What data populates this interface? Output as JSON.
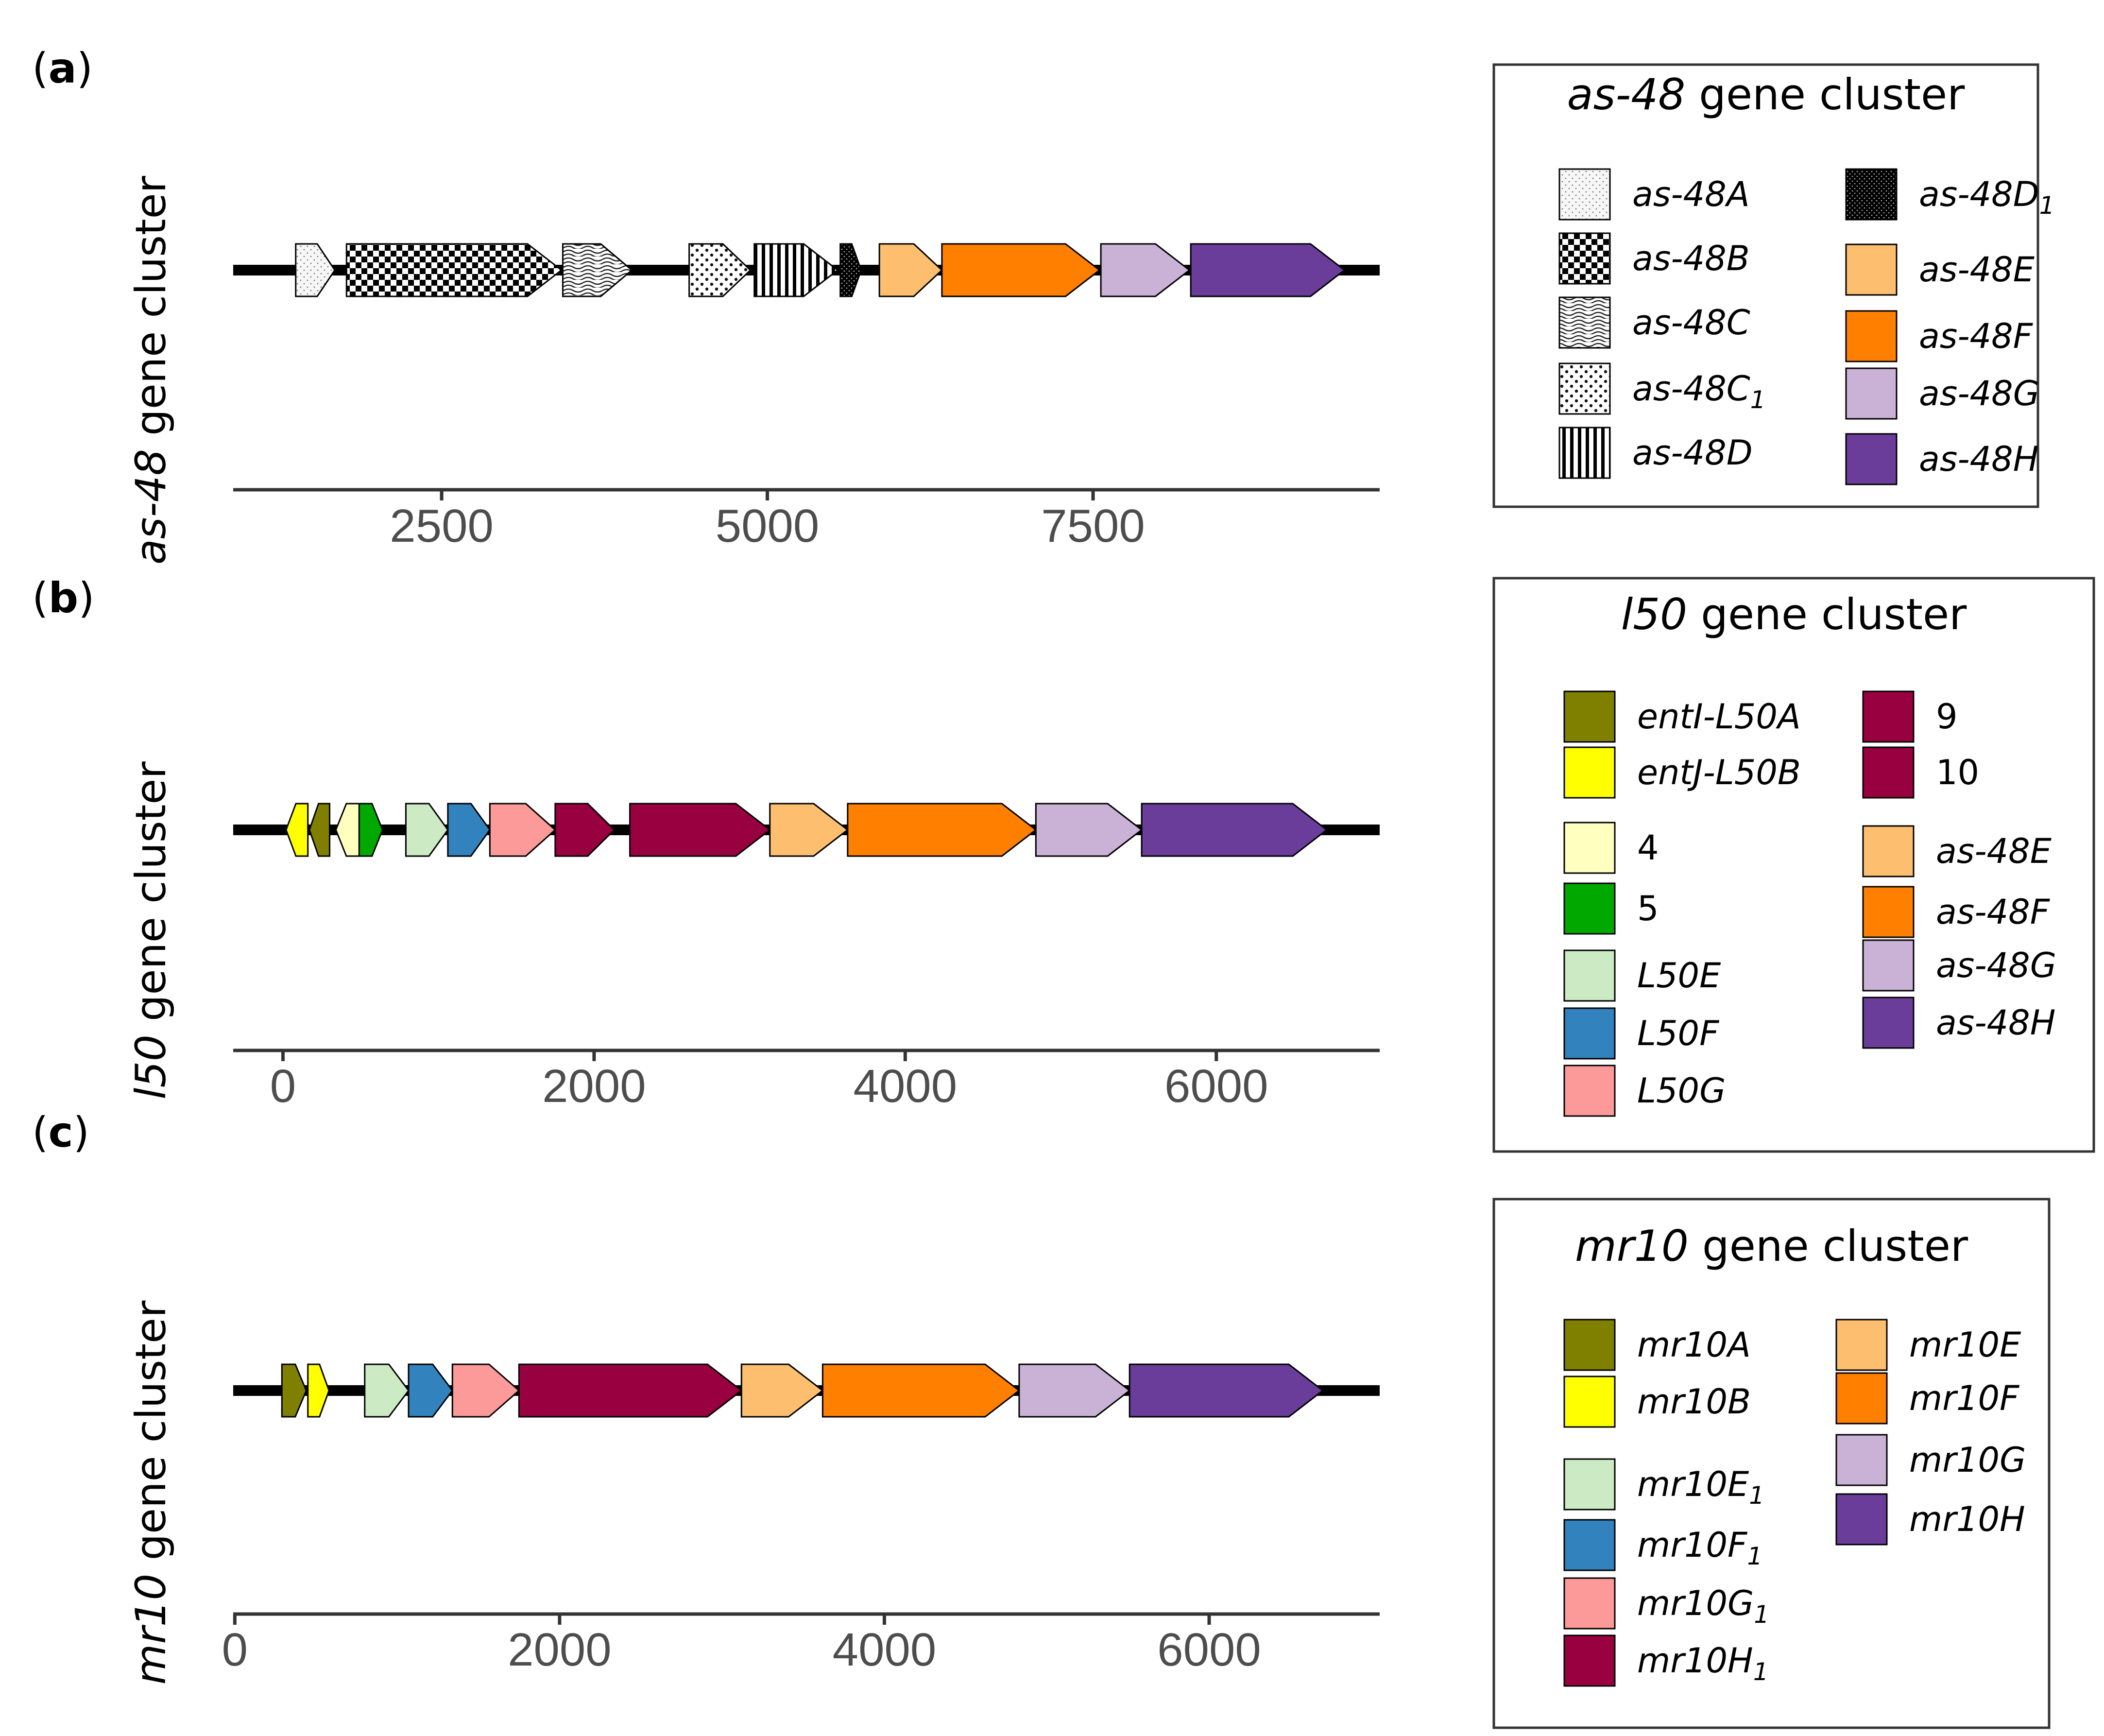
{
  "panels": [
    {
      "id": "a",
      "letter": "a",
      "ylabel": {
        "italic": "as-48",
        "rest": " gene cluster"
      },
      "axis": {
        "domain": [
          900,
          9700
        ],
        "ticks": [
          2500,
          5000,
          7500
        ]
      },
      "genes": [
        {
          "start": 1380,
          "end": 1680,
          "fill": "pattern:fine-dots"
        },
        {
          "start": 1770,
          "end": 3420,
          "fill": "pattern:checker"
        },
        {
          "start": 3430,
          "end": 3960,
          "fill": "pattern:waves"
        },
        {
          "start": 4400,
          "end": 4870,
          "fill": "pattern:coarse-dots"
        },
        {
          "start": 4900,
          "end": 5540,
          "fill": "pattern:vlines"
        },
        {
          "start": 5560,
          "end": 5720,
          "fill": "pattern:dense-dots"
        },
        {
          "start": 5860,
          "end": 6340,
          "fill": "#fdbf6f"
        },
        {
          "start": 6340,
          "end": 7550,
          "fill": "#ff7f00"
        },
        {
          "start": 7560,
          "end": 8240,
          "fill": "#cab2d6"
        },
        {
          "start": 8250,
          "end": 9430,
          "fill": "#6a3d9a"
        }
      ],
      "legend": {
        "title_italic": "as-48",
        "title_rest": " gene cluster",
        "columns": [
          [
            {
              "label": "as-48A",
              "fill": "pattern:fine-dots"
            },
            {
              "label": "as-48B",
              "fill": "pattern:checker"
            },
            {
              "label": "as-48C",
              "fill": "pattern:waves"
            },
            {
              "label": "as-48C",
              "sub": "1",
              "fill": "pattern:coarse-dots"
            },
            {
              "label": "as-48D",
              "fill": "pattern:vlines"
            }
          ],
          [
            {
              "label": "as-48D",
              "sub": "1",
              "fill": "pattern:dense-dots"
            },
            {
              "label": "as-48E",
              "fill": "#fdbf6f"
            },
            {
              "label": "as-48F",
              "fill": "#ff7f00"
            },
            {
              "label": "as-48G",
              "fill": "#cab2d6"
            },
            {
              "label": "as-48H",
              "fill": "#6a3d9a"
            }
          ]
        ]
      }
    },
    {
      "id": "b",
      "letter": "b",
      "ylabel": {
        "italic": "l50",
        "rest": " gene cluster"
      },
      "axis": {
        "domain": [
          -320,
          7050
        ],
        "ticks": [
          0,
          2000,
          4000,
          6000
        ]
      },
      "genes": [
        {
          "start": 20,
          "end": 160,
          "fill": "#ffff00",
          "strand": "-"
        },
        {
          "start": 170,
          "end": 300,
          "fill": "#808000",
          "strand": "-"
        },
        {
          "start": 340,
          "end": 490,
          "fill": "#ffffbf",
          "strand": "-"
        },
        {
          "start": 490,
          "end": 640,
          "fill": "#00a800"
        },
        {
          "start": 790,
          "end": 1060,
          "fill": "#ccebc5"
        },
        {
          "start": 1060,
          "end": 1330,
          "fill": "#3182bd"
        },
        {
          "start": 1330,
          "end": 1750,
          "fill": "#fb9a99"
        },
        {
          "start": 1750,
          "end": 2130,
          "fill": "#99003f"
        },
        {
          "start": 2230,
          "end": 3130,
          "fill": "#99003f"
        },
        {
          "start": 3130,
          "end": 3630,
          "fill": "#fdbf6f"
        },
        {
          "start": 3630,
          "end": 4840,
          "fill": "#ff7f00"
        },
        {
          "start": 4840,
          "end": 5520,
          "fill": "#cab2d6"
        },
        {
          "start": 5520,
          "end": 6710,
          "fill": "#6a3d9a"
        }
      ],
      "legend": {
        "title_italic": "l50",
        "title_rest": " gene cluster",
        "columns": [
          [
            {
              "label": "entI-L50A",
              "fill": "#808000",
              "italic": true
            },
            {
              "label": "entJ-L50B",
              "fill": "#ffff00",
              "italic": true
            },
            {
              "label": "4",
              "fill": "#ffffbf",
              "italic": false
            },
            {
              "label": "5",
              "fill": "#00a800",
              "italic": false
            },
            {
              "label": "L50E",
              "fill": "#ccebc5",
              "italic": true
            },
            {
              "label": "L50F",
              "fill": "#3182bd",
              "italic": true
            },
            {
              "label": "L50G",
              "fill": "#fb9a99",
              "italic": true
            }
          ],
          [
            {
              "label": "9",
              "fill": "#99003f",
              "italic": false
            },
            {
              "label": "10",
              "fill": "#99003f",
              "italic": false
            },
            {
              "label": "as-48E",
              "fill": "#fdbf6f",
              "italic": true
            },
            {
              "label": "as-48F",
              "fill": "#ff7f00",
              "italic": true
            },
            {
              "label": "as-48G",
              "fill": "#cab2d6",
              "italic": true
            },
            {
              "label": "as-48H",
              "fill": "#6a3d9a",
              "italic": true
            }
          ]
        ]
      }
    },
    {
      "id": "c",
      "letter": "c",
      "ylabel": {
        "italic": "mr10",
        "rest": " gene cluster"
      },
      "axis": {
        "domain": [
          -10,
          7050
        ],
        "ticks": [
          0,
          2000,
          4000,
          6000
        ]
      },
      "genes": [
        {
          "start": 290,
          "end": 440,
          "fill": "#808000"
        },
        {
          "start": 450,
          "end": 580,
          "fill": "#ffff00"
        },
        {
          "start": 800,
          "end": 1070,
          "fill": "#ccebc5"
        },
        {
          "start": 1070,
          "end": 1340,
          "fill": "#3182bd"
        },
        {
          "start": 1340,
          "end": 1750,
          "fill": "#fb9a99"
        },
        {
          "start": 1750,
          "end": 3120,
          "fill": "#99003f"
        },
        {
          "start": 3120,
          "end": 3620,
          "fill": "#fdbf6f"
        },
        {
          "start": 3620,
          "end": 4830,
          "fill": "#ff7f00"
        },
        {
          "start": 4830,
          "end": 5510,
          "fill": "#cab2d6"
        },
        {
          "start": 5510,
          "end": 6700,
          "fill": "#6a3d9a"
        }
      ],
      "legend": {
        "title_italic": "mr10",
        "title_rest": " gene cluster",
        "columns": [
          [
            {
              "label": "mr10A",
              "fill": "#808000"
            },
            {
              "label": "mr10B",
              "fill": "#ffff00"
            },
            {
              "label": "mr10E",
              "sub": "1",
              "fill": "#ccebc5"
            },
            {
              "label": "mr10F",
              "sub": "1",
              "fill": "#3182bd"
            },
            {
              "label": "mr10G",
              "sub": "1",
              "fill": "#fb9a99"
            },
            {
              "label": "mr10H",
              "sub": "1",
              "fill": "#99003f"
            }
          ],
          [
            {
              "label": "mr10E",
              "fill": "#fdbf6f"
            },
            {
              "label": "mr10F",
              "fill": "#ff7f00"
            },
            {
              "label": "mr10G",
              "fill": "#cab2d6"
            },
            {
              "label": "mr10H",
              "fill": "#6a3d9a"
            }
          ]
        ]
      }
    }
  ],
  "colors": {
    "line": "#000000",
    "axis": "#333333",
    "tick_text": "#4d4d4d",
    "gene_stroke": "#000000"
  }
}
